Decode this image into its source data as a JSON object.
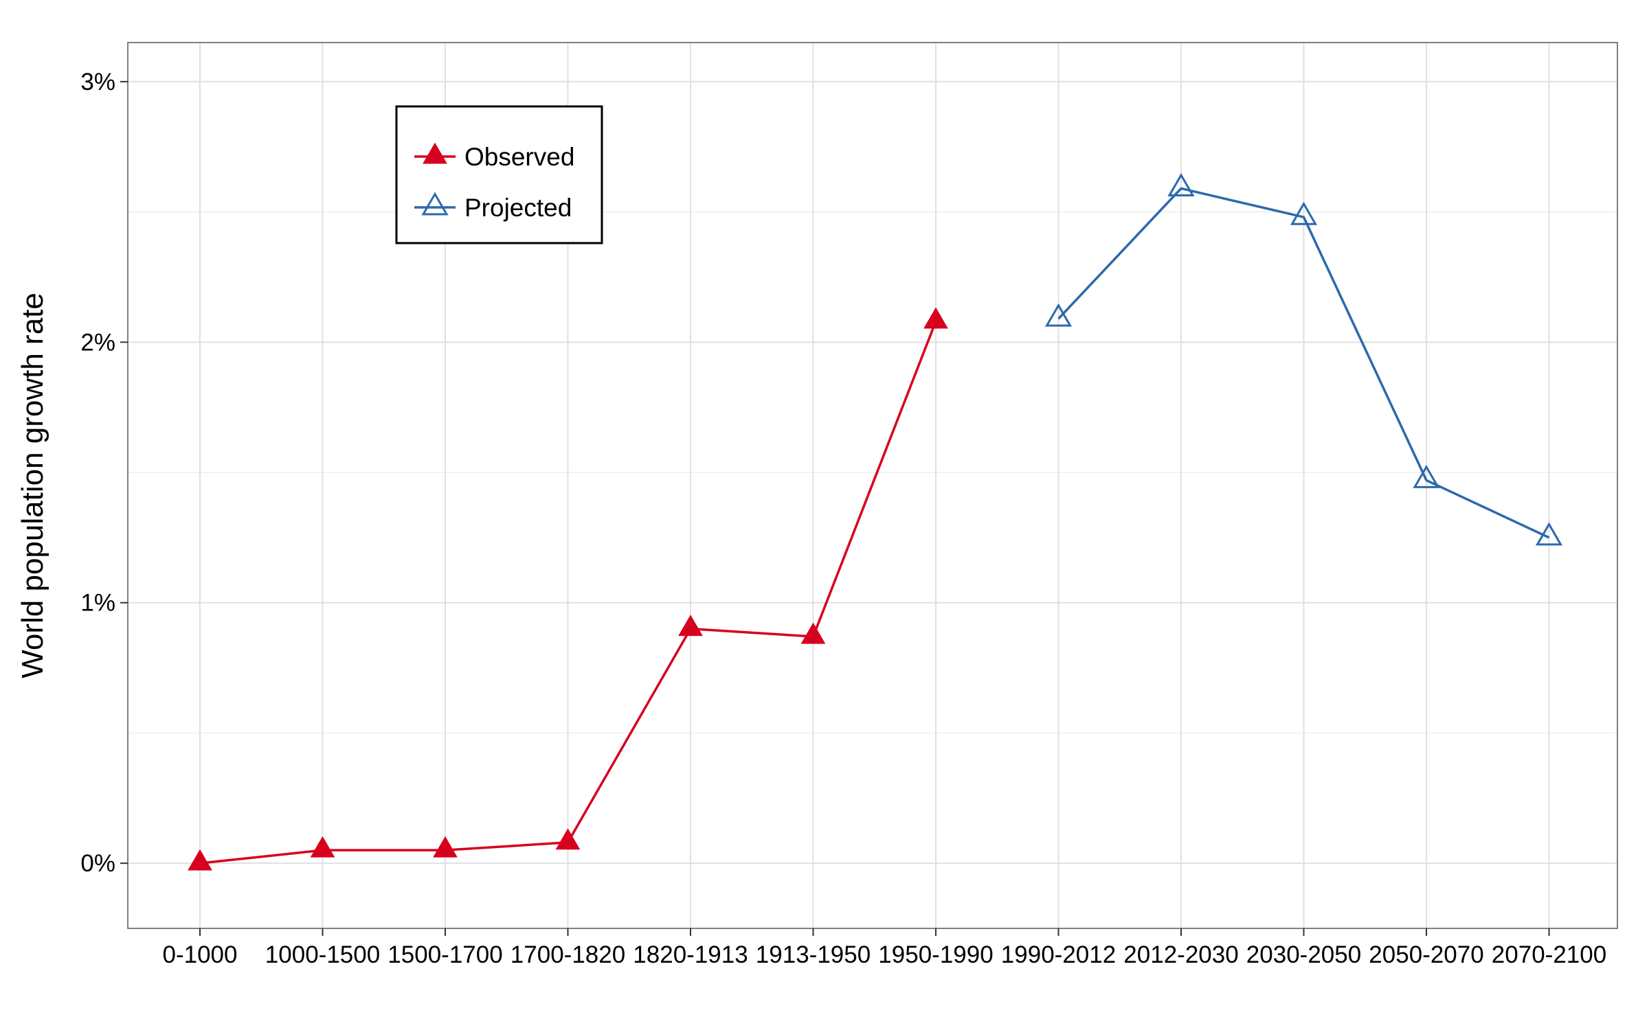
{
  "chart_data": {
    "type": "line",
    "title": "",
    "xlabel": "",
    "ylabel": "World population growth rate",
    "ylim": [
      -0.25,
      3.15
    ],
    "y_ticks": [
      0,
      1,
      2,
      3
    ],
    "y_tick_labels": [
      "0%",
      "1%",
      "2%",
      "3%"
    ],
    "y_unit": "%",
    "grid": true,
    "legend_position": "top-left",
    "categories": [
      "0-1000",
      "1000-1500",
      "1500-1700",
      "1700-1820",
      "1820-1913",
      "1913-1950",
      "1950-1990",
      "1990-2012",
      "2012-2030",
      "2030-2050",
      "2050-2070",
      "2070-2100"
    ],
    "series": [
      {
        "name": "Observed",
        "color": "#d7001f",
        "marker": "filled-triangle",
        "values": [
          0.0,
          0.05,
          0.05,
          0.08,
          0.9,
          0.87,
          2.08,
          null,
          null,
          null,
          null,
          null
        ]
      },
      {
        "name": "Projected",
        "color": "#2c69ac",
        "marker": "open-triangle",
        "values": [
          null,
          null,
          null,
          null,
          null,
          null,
          null,
          2.09,
          2.59,
          2.48,
          1.47,
          1.25
        ]
      }
    ]
  }
}
